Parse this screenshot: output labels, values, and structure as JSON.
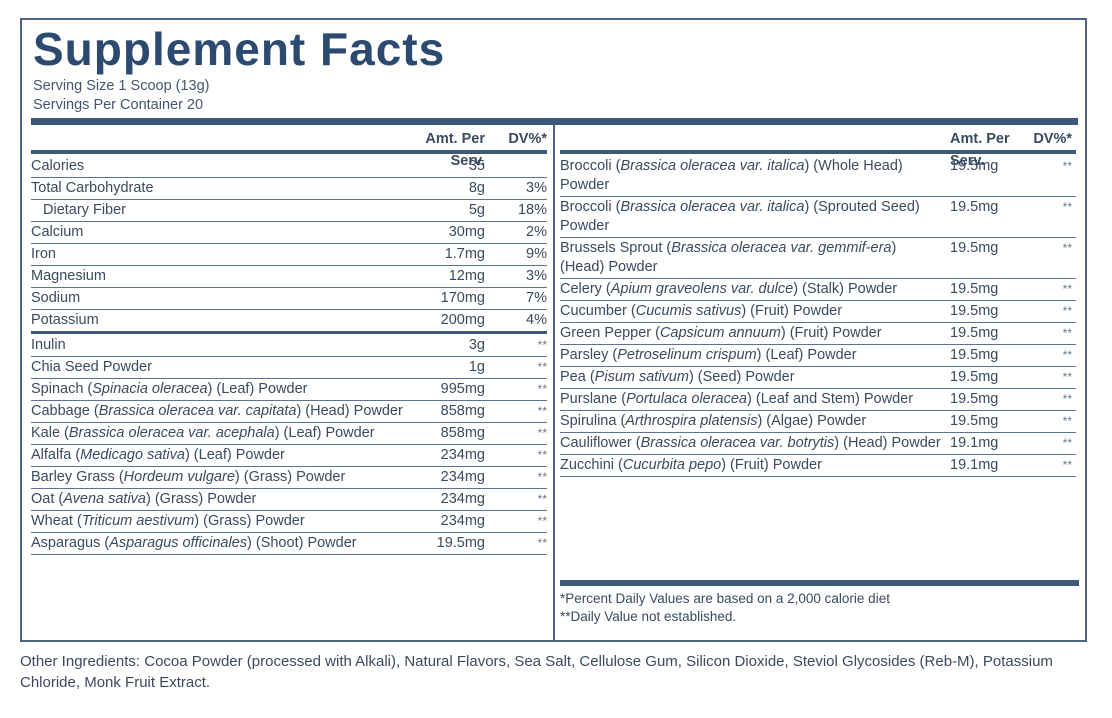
{
  "title": "Supplement Facts",
  "serving_size": "Serving Size 1 Scoop (13g)",
  "servings_per_container": "Servings Per Container 20",
  "left_table": {
    "header": {
      "amount": "Amt. Per Serv.",
      "dv": "DV%*"
    },
    "groups": [
      {
        "rows": [
          {
            "name": [
              "Calories"
            ],
            "amount": "35"
          },
          {
            "name": [
              "Total Carbohydrate"
            ],
            "amount": "8g",
            "dv": "3%"
          },
          {
            "name": [
              "Dietary Fiber"
            ],
            "amount": "5g",
            "dv": "18%",
            "indent": true
          },
          {
            "name": [
              "Calcium"
            ],
            "amount": "30mg",
            "dv": "2%"
          },
          {
            "name": [
              "Iron"
            ],
            "amount": "1.7mg",
            "dv": "9%"
          },
          {
            "name": [
              "Magnesium"
            ],
            "amount": "12mg",
            "dv": "3%"
          },
          {
            "name": [
              "Sodium"
            ],
            "amount": "170mg",
            "dv": "7%"
          },
          {
            "name": [
              "Potassium"
            ],
            "amount": "200mg",
            "dv": "4%"
          }
        ]
      },
      {
        "rows": [
          {
            "name": [
              "Inulin"
            ],
            "amount": "3g",
            "dv": "**"
          },
          {
            "name": [
              "Chia Seed Powder"
            ],
            "amount": "1g",
            "dv": "**"
          },
          {
            "name": [
              "Spinach (",
              "Spinacia oleracea",
              ") (Leaf) Powder"
            ],
            "amount": "995mg",
            "dv": "**"
          },
          {
            "name": [
              "Cabbage (",
              "Brassica oleracea var. capitata",
              ") (Head) Powder"
            ],
            "amount": "858mg",
            "dv": "**"
          },
          {
            "name": [
              "Kale (",
              "Brassica oleracea var. acephala",
              ") (Leaf) Powder"
            ],
            "amount": "858mg",
            "dv": "**"
          },
          {
            "name": [
              "Alfalfa (",
              "Medicago sativa",
              ") (Leaf) Powder"
            ],
            "amount": "234mg",
            "dv": "**"
          },
          {
            "name": [
              "Barley Grass (",
              "Hordeum vulgare",
              ") (Grass) Powder"
            ],
            "amount": "234mg",
            "dv": "**"
          },
          {
            "name": [
              "Oat (",
              "Avena sativa",
              ") (Grass) Powder"
            ],
            "amount": "234mg",
            "dv": "**"
          },
          {
            "name": [
              "Wheat (",
              "Triticum aestivum",
              ") (Grass) Powder"
            ],
            "amount": "234mg",
            "dv": "**"
          },
          {
            "name": [
              "Asparagus (",
              "Asparagus officinales",
              ") (Shoot) Powder"
            ],
            "amount": "19.5mg",
            "dv": "**"
          }
        ]
      }
    ]
  },
  "right_table": {
    "header": {
      "amount": "Amt. Per Serv.",
      "dv": "DV%*"
    },
    "rows": [
      {
        "name": [
          "Broccoli (",
          "Brassica oleracea var. italica",
          ") (Whole Head) Powder"
        ],
        "amount": "19.5mg",
        "dv": "**"
      },
      {
        "name": [
          "Broccoli (",
          "Brassica oleracea var. italica",
          ") (Sprouted Seed) Powder"
        ],
        "amount": "19.5mg",
        "dv": "**"
      },
      {
        "name": [
          "Brussels Sprout (",
          "Brassica oleracea var. gemmif-era",
          ") (Head) Powder"
        ],
        "amount": "19.5mg",
        "dv": "**"
      },
      {
        "name": [
          "Celery (",
          "Apium graveolens var. dulce",
          ") (Stalk) Powder"
        ],
        "amount": "19.5mg",
        "dv": "**"
      },
      {
        "name": [
          "Cucumber (",
          "Cucumis sativus",
          ") (Fruit) Powder"
        ],
        "amount": "19.5mg",
        "dv": "**"
      },
      {
        "name": [
          "Green Pepper (",
          "Capsicum annuum",
          ") (Fruit) Powder"
        ],
        "amount": "19.5mg",
        "dv": "**"
      },
      {
        "name": [
          "Parsley (",
          "Petroselinum crispum",
          ") (Leaf) Powder"
        ],
        "amount": "19.5mg",
        "dv": "**"
      },
      {
        "name": [
          "Pea (",
          "Pisum sativum",
          ") (Seed) Powder"
        ],
        "amount": "19.5mg",
        "dv": "**"
      },
      {
        "name": [
          "Purslane (",
          "Portulaca oleracea",
          ") (Leaf and Stem) Powder"
        ],
        "amount": "19.5mg",
        "dv": "**"
      },
      {
        "name": [
          "Spirulina (",
          "Arthrospira platensis",
          ") (Algae) Powder"
        ],
        "amount": "19.5mg",
        "dv": "**"
      },
      {
        "name": [
          "Cauliflower (",
          "Brassica oleracea var. botrytis",
          ") (Head) Powder"
        ],
        "amount": "19.1mg",
        "dv": "**"
      },
      {
        "name": [
          "Zucchini (",
          "Cucurbita pepo",
          ") (Fruit) Powder"
        ],
        "amount": "19.1mg",
        "dv": "**"
      }
    ]
  },
  "footnotes": [
    "*Percent Daily Values are based on a 2,000 calorie diet",
    "**Daily Value not established."
  ],
  "other_ingredients": "Other Ingredients: Cocoa Powder (processed with Alkali), Natural Flavors, Sea Salt, Cellulose Gum, Silicon Dioxide, Steviol Glycosides (Reb-M), Potassium Chloride, Monk Fruit Extract."
}
